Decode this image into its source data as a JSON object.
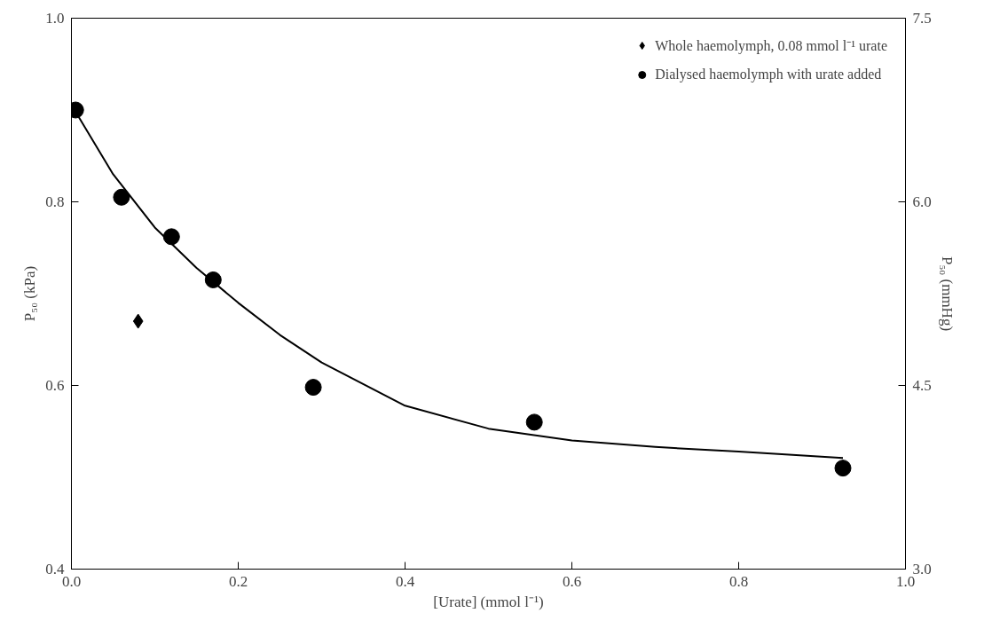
{
  "chart_data": {
    "type": "scatter",
    "xlabel": "[Urate] (mmol l⁻¹)",
    "ylabel": "P₅₀ (kPa)",
    "y2label": "P₅₀ (mmHg)",
    "xlim": [
      0,
      1
    ],
    "xticks": [
      {
        "value": 0,
        "label": "0.0"
      },
      0.2,
      0.4,
      0.6,
      0.8,
      {
        "value": 1,
        "label": "1.0"
      }
    ],
    "ylim": [
      0.4,
      1.0
    ],
    "yticks": [
      0.4,
      0.6,
      0.8,
      {
        "value": 1.0,
        "label": "1.0"
      }
    ],
    "y2lim": [
      3.0,
      7.5
    ],
    "y2ticks": [
      {
        "value": 3,
        "label": "3.0"
      },
      4.5,
      {
        "value": 6,
        "label": "6.0"
      },
      7.5
    ],
    "grid": false,
    "legend": "top right",
    "series": [
      {
        "name": "Whole haemolymph, 0.08 mmol l⁻¹ urate",
        "marker": "diamond",
        "color": "#000000",
        "x": [
          0.08
        ],
        "values": [
          0.67
        ]
      },
      {
        "name": "Dialysed haemolymph with urate added",
        "marker": "circle",
        "color": "#000000",
        "x": [
          0.005,
          0.06,
          0.12,
          0.17,
          0.29,
          0.555,
          0.925
        ],
        "values": [
          0.9,
          0.805,
          0.762,
          0.715,
          0.598,
          0.56,
          0.51
        ]
      },
      {
        "type": "line",
        "marker": "none",
        "line_style": "solid",
        "color": "#000000",
        "x": [
          0.005,
          0.05,
          0.1,
          0.15,
          0.2,
          0.25,
          0.3,
          0.4,
          0.5,
          0.6,
          0.7,
          0.8,
          0.925
        ],
        "values": [
          0.898,
          0.83,
          0.772,
          0.728,
          0.69,
          0.655,
          0.625,
          0.578,
          0.553,
          0.54,
          0.533,
          0.528,
          0.521
        ]
      }
    ]
  }
}
